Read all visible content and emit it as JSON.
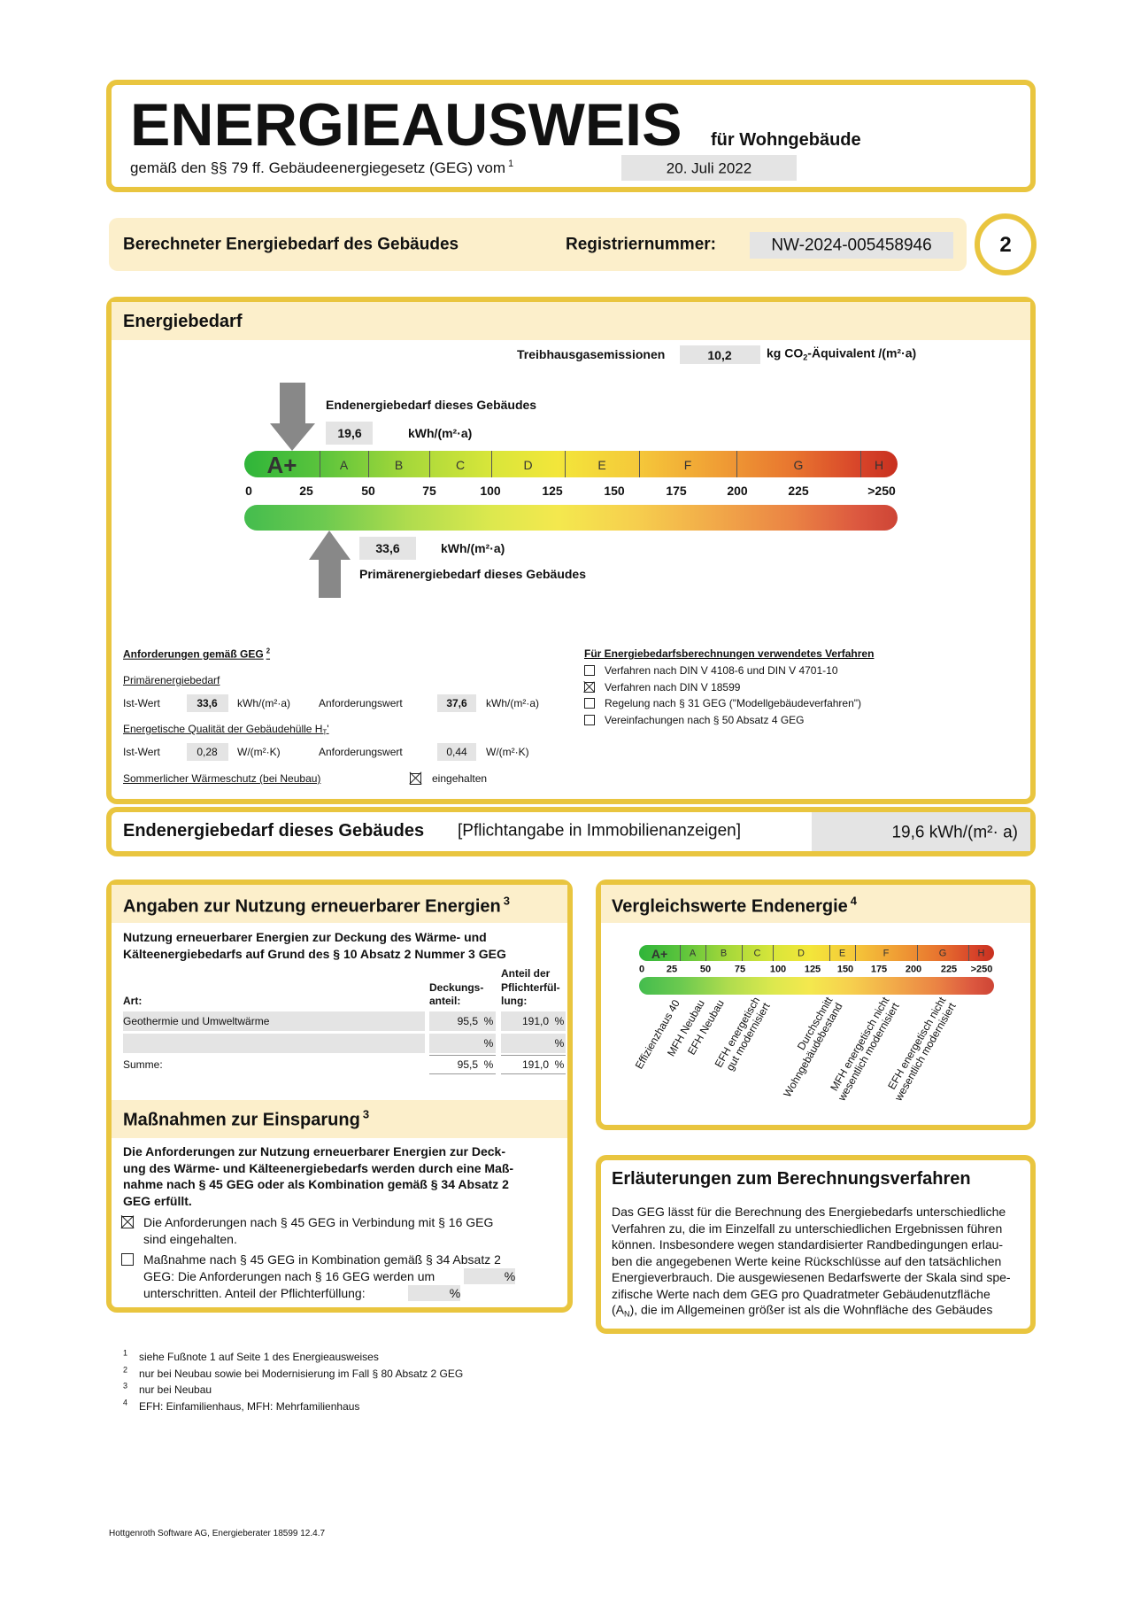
{
  "header": {
    "title": "ENERGIEAUSWEIS",
    "subtitle": "für Wohngebäude",
    "law": "gemäß den §§ 79 ff. Gebäudeenergiegesetz (GEG) vom",
    "law_note": "1",
    "date": "20. Juli 2022"
  },
  "banner": {
    "label": "Berechneter Energiebedarf des Gebäudes",
    "registration_label": "Registriernummer:",
    "registration_number": "NW-2024-005458946",
    "page": "2"
  },
  "demand": {
    "title": "Energiebedarf",
    "emissions_label": "Treibhausgasemissionen",
    "emissions_value": "10,2",
    "emissions_unit": [
      "kg CO",
      "2",
      "-Äquivalent /(m²·a)"
    ],
    "final_label": "Endenergiebedarf dieses Gebäudes",
    "final_value": "19,6",
    "final_unit": "kWh/(m²·a)",
    "primary_label": "Primärenergiebedarf dieses Gebäudes",
    "primary_value": "33,6",
    "primary_unit": "kWh/(m²·a)",
    "classes": [
      "A+",
      "A",
      "B",
      "C",
      "D",
      "E",
      "F",
      "G",
      "H"
    ],
    "scale": [
      "0",
      "25",
      "50",
      "75",
      "100",
      "125",
      "150",
      "175",
      "200",
      "225",
      ">250"
    ]
  },
  "requirements": {
    "title": [
      "Anforderungen gemäß GEG",
      "2"
    ],
    "primary": {
      "title": "Primärenergiebedarf",
      "actual_label": "Ist-Wert",
      "actual_value": "33,6",
      "actual_unit": "kWh/(m²·a)",
      "required_label": "Anforderungswert",
      "required_value": "37,6",
      "required_unit": "kWh/(m²·a)"
    },
    "envelope": {
      "title": [
        "Energetische Qualität der Gebäudehülle H",
        "T",
        "'"
      ],
      "actual_label": "Ist-Wert",
      "actual_value": "0,28",
      "actual_unit": "W/(m²·K)",
      "required_label": "Anforderungswert",
      "required_value": "0,44",
      "required_unit": "W/(m²·K)"
    },
    "summer": {
      "label": "Sommerlicher Wärmeschutz (bei Neubau)",
      "checked": true,
      "status": "eingehalten"
    }
  },
  "method": {
    "title": "Für Energiebedarfsberechnungen verwendetes Verfahren",
    "options": [
      {
        "label": "Verfahren nach DIN V 4108-6 und DIN V 4701-10",
        "checked": false
      },
      {
        "label": "Verfahren nach DIN V 18599",
        "checked": true
      },
      {
        "label": "Regelung nach § 31 GEG (\"Modellgebäudeverfahren\")",
        "checked": false
      },
      {
        "label": "Vereinfachungen nach § 50 Absatz 4 GEG",
        "checked": false
      }
    ]
  },
  "final_notice": {
    "label": "Endenergiebedarf dieses Gebäudes",
    "note": "[Pflichtangabe in Immobilienanzeigen]",
    "value": "19,6 kWh/(m²· a)"
  },
  "renewables": {
    "title": [
      "Angaben zur Nutzung erneuerbarer Energien",
      "3"
    ],
    "intro": [
      "Nutzung erneuerbarer Energien zur Deckung des Wärme- und",
      "Kälteenergiebedarfs auf Grund des § 10 Absatz 2 Nummer 3 GEG"
    ],
    "columns": {
      "type": [
        "Art:"
      ],
      "coverage": [
        "Deckungs-",
        "anteil:"
      ],
      "share": [
        "Anteil der",
        "Pflichterfül-",
        "lung:"
      ]
    },
    "rows": [
      {
        "type": "Geothermie und Umweltwärme",
        "coverage": "95,5",
        "coverage_unit": "%",
        "share": "191,0",
        "share_unit": "%"
      },
      {
        "coverage_unit": "%",
        "share_unit": "%"
      },
      {
        "type": "Summe:",
        "coverage": "95,5",
        "coverage_unit": "%",
        "share": "191,0",
        "share_unit": "%"
      }
    ]
  },
  "measures": {
    "title": [
      "Maßnahmen zur Einsparung",
      "3"
    ],
    "intro": [
      "Die Anforderungen zur Nutzung erneuerbarer Energien zur Deck-",
      "ung des Wärme- und Kälteenergiebedarfs werden durch eine Maß-",
      "nahme nach § 45 GEG oder als Kombination gemäß § 34 Absatz 2",
      "GEG erfüllt."
    ],
    "options": [
      {
        "checked": true,
        "lines": [
          "Die Anforderungen nach § 45 GEG in Verbindung mit § 16 GEG",
          "sind eingehalten."
        ]
      },
      {
        "checked": false,
        "lines": [
          "Maßnahme nach § 45 GEG in Kombination gemäß § 34 Absatz 2",
          "GEG: Die Anforderungen nach § 16 GEG werden um",
          "unterschritten. Anteil der Pflichterfüllung:"
        ],
        "units": [
          "%",
          "%"
        ]
      }
    ]
  },
  "comparison": {
    "title": [
      "Vergleichswerte Endenergie",
      "4"
    ],
    "classes": [
      "A+",
      "A",
      "B",
      "C",
      "D",
      "E",
      "F",
      "G",
      "H"
    ],
    "scale": [
      "0",
      "25",
      "50",
      "75",
      "100",
      "125",
      "150",
      "175",
      "200",
      "225",
      ">250"
    ],
    "references": [
      [
        "Effizienzhaus 40"
      ],
      [
        "MFH Neubau"
      ],
      [
        "EFH Neubau"
      ],
      [
        "EFH energetisch",
        "gut modernisiert"
      ],
      [
        "Durchschnitt",
        "Wohngebäudebestand"
      ],
      [
        "MFH energetisch nicht",
        "wesentlich modernisiert"
      ],
      [
        "EFH energetisch nicht",
        "wesentlich modernisiert"
      ]
    ]
  },
  "explanation": {
    "title": "Erläuterungen zum Berechnungsverfahren",
    "lines": [
      "Das GEG lässt für die Berechnung des Energiebedarfs unterschiedliche",
      "Verfahren zu, die im Einzelfall zu unterschiedlichen Ergebnissen führen",
      "können. Insbesondere wegen standardisierter Randbedingungen erlau-",
      "ben die angegebenen Werte keine Rückschlüsse auf den tatsächlichen",
      "Energieverbrauch. Die ausgewiesenen Bedarfswerte der Skala sind spe-",
      "zifische Werte nach dem GEG pro Quadratmeter Gebäudenutzfläche"
    ],
    "last_line": [
      "(A",
      "N",
      "), die im Allgemeinen größer ist als die Wohnfläche des Gebäudes"
    ]
  },
  "footnotes": [
    {
      "mark": "1",
      "text": "siehe Fußnote 1 auf Seite 1 des Energieausweises"
    },
    {
      "mark": "2",
      "text": "nur bei Neubau sowie bei Modernisierung im Fall § 80 Absatz 2 GEG"
    },
    {
      "mark": "3",
      "text": "nur bei Neubau"
    },
    {
      "mark": "4",
      "text": "EFH: Einfamilienhaus, MFH: Mehrfamilienhaus"
    }
  ],
  "footer": "Hottgenroth Software AG, Energieberater 18599 12.4.7"
}
